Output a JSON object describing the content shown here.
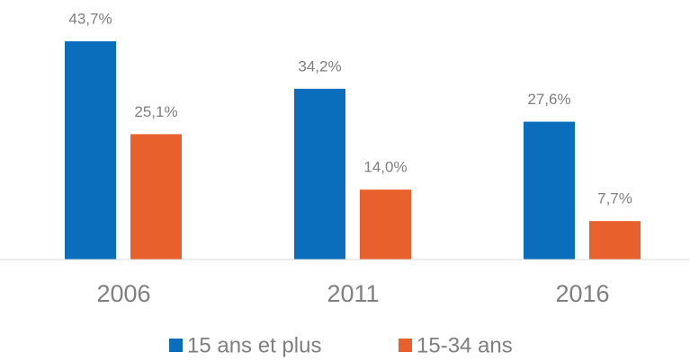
{
  "chart_data": {
    "type": "bar",
    "categories": [
      "2006",
      "2011",
      "2016"
    ],
    "series": [
      {
        "name": "15 ans et plus",
        "color": "#0a6ebd",
        "values": [
          43.7,
          34.2,
          27.6
        ],
        "value_labels": [
          "43,7%",
          "34,2%",
          "27,6%"
        ]
      },
      {
        "name": "15-34 ans",
        "color": "#e8602c",
        "values": [
          25.1,
          14.0,
          7.7
        ],
        "value_labels": [
          "25,1%",
          "14,0%",
          "7,7%"
        ]
      }
    ]
  }
}
